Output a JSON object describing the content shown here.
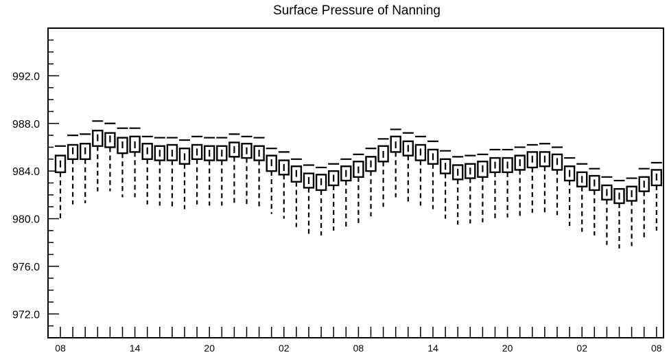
{
  "chart_data": {
    "type": "box",
    "title": "Surface Pressure of Nanning",
    "xlabel": "",
    "ylabel": "",
    "ylim": [
      970.0,
      996.0
    ],
    "y_ticks": [
      "972.0",
      "976.0",
      "980.0",
      "984.0",
      "988.0",
      "992.0"
    ],
    "x_ticks": [
      "08",
      "14",
      "20",
      "02",
      "08",
      "14",
      "20",
      "02",
      "08"
    ],
    "x_tick_positions": [
      0,
      6,
      12,
      18,
      24,
      30,
      36,
      42,
      48
    ],
    "boxes": [
      {
        "x": 0,
        "whisker_low": 980.0,
        "q1": 983.9,
        "median": 984.6,
        "q3": 985.3,
        "whisker_high": 986.1
      },
      {
        "x": 1,
        "whisker_low": 981.2,
        "q1": 985.0,
        "median": 985.7,
        "q3": 986.2,
        "whisker_high": 987.0
      },
      {
        "x": 2,
        "whisker_low": 981.3,
        "q1": 985.0,
        "median": 985.7,
        "q3": 986.3,
        "whisker_high": 987.1
      },
      {
        "x": 3,
        "whisker_low": 982.3,
        "q1": 986.1,
        "median": 986.8,
        "q3": 987.4,
        "whisker_high": 988.2
      },
      {
        "x": 4,
        "whisker_low": 982.3,
        "q1": 986.0,
        "median": 986.7,
        "q3": 987.2,
        "whisker_high": 988.0
      },
      {
        "x": 5,
        "whisker_low": 981.8,
        "q1": 985.5,
        "median": 986.2,
        "q3": 986.8,
        "whisker_high": 987.6
      },
      {
        "x": 6,
        "whisker_low": 981.8,
        "q1": 985.6,
        "median": 986.2,
        "q3": 986.9,
        "whisker_high": 987.6
      },
      {
        "x": 7,
        "whisker_low": 981.2,
        "q1": 985.0,
        "median": 985.7,
        "q3": 986.3,
        "whisker_high": 986.9
      },
      {
        "x": 8,
        "whisker_low": 981.1,
        "q1": 984.9,
        "median": 985.5,
        "q3": 986.1,
        "whisker_high": 986.8
      },
      {
        "x": 9,
        "whisker_low": 981.0,
        "q1": 984.9,
        "median": 985.5,
        "q3": 986.2,
        "whisker_high": 986.8
      },
      {
        "x": 10,
        "whisker_low": 980.8,
        "q1": 984.6,
        "median": 985.2,
        "q3": 985.9,
        "whisker_high": 986.6
      },
      {
        "x": 11,
        "whisker_low": 981.2,
        "q1": 985.0,
        "median": 985.6,
        "q3": 986.2,
        "whisker_high": 986.9
      },
      {
        "x": 12,
        "whisker_low": 981.1,
        "q1": 984.9,
        "median": 985.5,
        "q3": 986.1,
        "whisker_high": 986.8
      },
      {
        "x": 13,
        "whisker_low": 981.1,
        "q1": 984.9,
        "median": 985.5,
        "q3": 986.1,
        "whisker_high": 986.8
      },
      {
        "x": 14,
        "whisker_low": 981.3,
        "q1": 985.2,
        "median": 985.8,
        "q3": 986.4,
        "whisker_high": 987.1
      },
      {
        "x": 15,
        "whisker_low": 981.2,
        "q1": 985.1,
        "median": 985.7,
        "q3": 986.3,
        "whisker_high": 986.9
      },
      {
        "x": 16,
        "whisker_low": 981.0,
        "q1": 984.9,
        "median": 985.5,
        "q3": 986.1,
        "whisker_high": 986.8
      },
      {
        "x": 17,
        "whisker_low": 980.4,
        "q1": 984.0,
        "median": 984.7,
        "q3": 985.3,
        "whisker_high": 985.9
      },
      {
        "x": 18,
        "whisker_low": 980.0,
        "q1": 983.7,
        "median": 984.3,
        "q3": 984.9,
        "whisker_high": 985.6
      },
      {
        "x": 19,
        "whisker_low": 979.3,
        "q1": 983.1,
        "median": 983.8,
        "q3": 984.4,
        "whisker_high": 985.0
      },
      {
        "x": 20,
        "whisker_low": 978.7,
        "q1": 982.6,
        "median": 983.2,
        "q3": 983.8,
        "whisker_high": 984.5
      },
      {
        "x": 21,
        "whisker_low": 978.6,
        "q1": 982.4,
        "median": 983.1,
        "q3": 983.7,
        "whisker_high": 984.3
      },
      {
        "x": 22,
        "whisker_low": 979.0,
        "q1": 982.8,
        "median": 983.4,
        "q3": 984.0,
        "whisker_high": 984.6
      },
      {
        "x": 23,
        "whisker_low": 979.3,
        "q1": 983.2,
        "median": 983.8,
        "q3": 984.4,
        "whisker_high": 985.0
      },
      {
        "x": 24,
        "whisker_low": 979.6,
        "q1": 983.5,
        "median": 984.1,
        "q3": 984.8,
        "whisker_high": 985.4
      },
      {
        "x": 25,
        "whisker_low": 980.2,
        "q1": 984.0,
        "median": 984.6,
        "q3": 985.2,
        "whisker_high": 985.9
      },
      {
        "x": 26,
        "whisker_low": 981.0,
        "q1": 984.8,
        "median": 985.4,
        "q3": 986.1,
        "whisker_high": 986.7
      },
      {
        "x": 27,
        "whisker_low": 981.8,
        "q1": 985.6,
        "median": 986.2,
        "q3": 986.9,
        "whisker_high": 987.5
      },
      {
        "x": 28,
        "whisker_low": 981.4,
        "q1": 985.3,
        "median": 985.9,
        "q3": 986.5,
        "whisker_high": 987.2
      },
      {
        "x": 29,
        "whisker_low": 981.1,
        "q1": 984.9,
        "median": 985.6,
        "q3": 986.2,
        "whisker_high": 986.9
      },
      {
        "x": 30,
        "whisker_low": 980.8,
        "q1": 984.6,
        "median": 985.2,
        "q3": 985.8,
        "whisker_high": 986.5
      },
      {
        "x": 31,
        "whisker_low": 980.0,
        "q1": 983.8,
        "median": 984.4,
        "q3": 985.0,
        "whisker_high": 985.7
      },
      {
        "x": 32,
        "whisker_low": 979.5,
        "q1": 983.3,
        "median": 983.9,
        "q3": 984.5,
        "whisker_high": 985.2
      },
      {
        "x": 33,
        "whisker_low": 979.6,
        "q1": 983.4,
        "median": 984.0,
        "q3": 984.6,
        "whisker_high": 985.3
      },
      {
        "x": 34,
        "whisker_low": 979.7,
        "q1": 983.5,
        "median": 984.2,
        "q3": 984.8,
        "whisker_high": 985.4
      },
      {
        "x": 35,
        "whisker_low": 980.0,
        "q1": 983.9,
        "median": 984.5,
        "q3": 985.1,
        "whisker_high": 985.8
      },
      {
        "x": 36,
        "whisker_low": 980.1,
        "q1": 983.9,
        "median": 984.5,
        "q3": 985.1,
        "whisker_high": 985.8
      },
      {
        "x": 37,
        "whisker_low": 980.2,
        "q1": 984.1,
        "median": 984.7,
        "q3": 985.3,
        "whisker_high": 986.0
      },
      {
        "x": 38,
        "whisker_low": 980.5,
        "q1": 984.3,
        "median": 985.0,
        "q3": 985.6,
        "whisker_high": 986.2
      },
      {
        "x": 39,
        "whisker_low": 980.5,
        "q1": 984.4,
        "median": 985.0,
        "q3": 985.6,
        "whisker_high": 986.3
      },
      {
        "x": 40,
        "whisker_low": 980.3,
        "q1": 984.1,
        "median": 984.8,
        "q3": 985.4,
        "whisker_high": 986.0
      },
      {
        "x": 41,
        "whisker_low": 979.4,
        "q1": 983.2,
        "median": 983.8,
        "q3": 984.4,
        "whisker_high": 985.1
      },
      {
        "x": 42,
        "whisker_low": 978.9,
        "q1": 982.7,
        "median": 983.3,
        "q3": 983.9,
        "whisker_high": 984.6
      },
      {
        "x": 43,
        "whisker_low": 978.6,
        "q1": 982.4,
        "median": 983.0,
        "q3": 983.6,
        "whisker_high": 984.2
      },
      {
        "x": 44,
        "whisker_low": 977.8,
        "q1": 981.6,
        "median": 982.2,
        "q3": 982.8,
        "whisker_high": 983.5
      },
      {
        "x": 45,
        "whisker_low": 977.5,
        "q1": 981.3,
        "median": 981.9,
        "q3": 982.5,
        "whisker_high": 983.2
      },
      {
        "x": 46,
        "whisker_low": 977.7,
        "q1": 981.5,
        "median": 982.1,
        "q3": 982.7,
        "whisker_high": 983.4
      },
      {
        "x": 47,
        "whisker_low": 978.4,
        "q1": 982.3,
        "median": 982.9,
        "q3": 983.5,
        "whisker_high": 984.2
      },
      {
        "x": 48,
        "whisker_low": 979.0,
        "q1": 982.8,
        "median": 983.5,
        "q3": 984.1,
        "whisker_high": 984.7
      }
    ]
  }
}
